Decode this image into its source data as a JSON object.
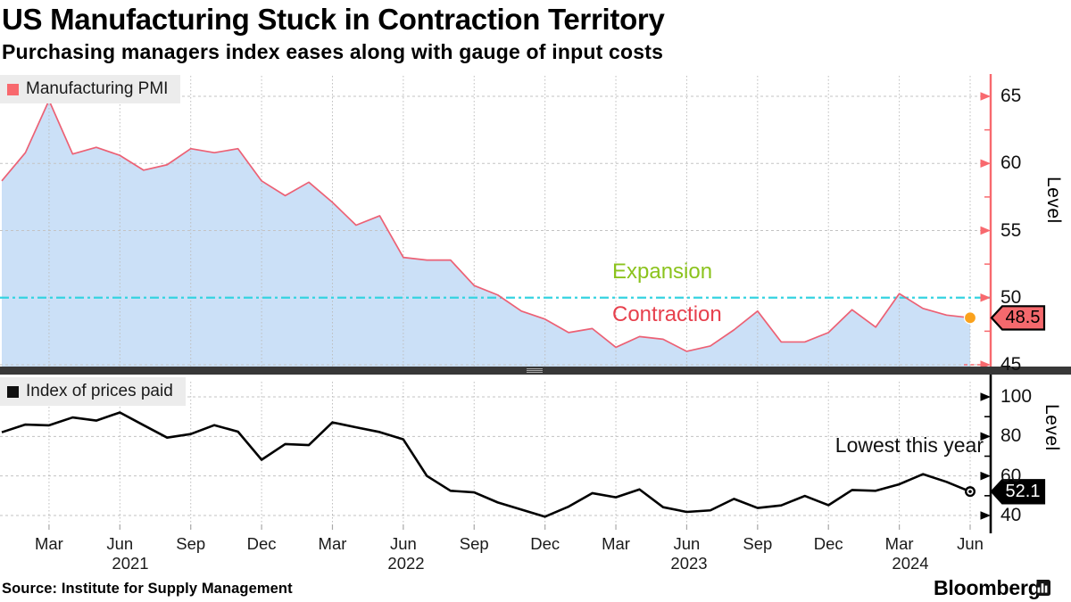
{
  "header": {
    "title": "US Manufacturing Stuck in Contraction Territory",
    "subtitle": "Purchasing managers index eases along with gauge of input costs"
  },
  "footer": {
    "source": "Source: Institute for Supply Management",
    "brand": "Bloomberg"
  },
  "panels": {
    "pmi": {
      "legend": "Manufacturing PMI",
      "axis_label": "Level",
      "last_value": "48.5",
      "expansion_label": "Expansion",
      "contraction_label": "Contraction"
    },
    "prices": {
      "legend": "Index of prices paid",
      "axis_label": "Level",
      "last_value": "52.1",
      "annotation": "Lowest this year"
    }
  },
  "x_axis": {
    "month_labels": [
      "Mar",
      "Jun",
      "Sep",
      "Dec",
      "Mar",
      "Jun",
      "Sep",
      "Dec",
      "Mar",
      "Jun",
      "Sep",
      "Dec",
      "Mar",
      "Jun"
    ],
    "year_labels": [
      "2021",
      "2022",
      "2023",
      "2024"
    ]
  },
  "colors": {
    "pmi_line": "#ec6175",
    "pmi_fill": "#cbe0f7",
    "pmi_axis": "#f8696e",
    "reference_cyan": "#35d3e1",
    "expansion_green": "#8bc31d",
    "contraction_red": "#e7404d",
    "last_dot_orange": "#faa21d",
    "prices_line": "#000000",
    "grid": "#c3c3c3",
    "tag_pmi_bg": "#f5696d",
    "tag_prices_bg": "#000000"
  },
  "chart_data": [
    {
      "type": "area",
      "title": "Manufacturing PMI",
      "frequency": "monthly",
      "x_start": "2021-01",
      "x_end": "2024-06",
      "x_tick_labels": [
        "Mar 2021",
        "Jun 2021",
        "Sep 2021",
        "Dec 2021",
        "Mar 2022",
        "Jun 2022",
        "Sep 2022",
        "Dec 2022",
        "Mar 2023",
        "Jun 2023",
        "Sep 2023",
        "Dec 2023",
        "Mar 2024",
        "Jun 2024"
      ],
      "ylabel": "Level",
      "ylim": [
        44.2,
        66.5
      ],
      "y_ticks": [
        45,
        50,
        55,
        60,
        65
      ],
      "y_minor_ticks": [
        47.5,
        52.5,
        57.5,
        62.5
      ],
      "grid": true,
      "legend_position": "top-left",
      "reference_line": {
        "value": 50,
        "style": "dash-dot",
        "label_above": "Expansion",
        "label_below": "Contraction"
      },
      "values": [
        58.7,
        60.8,
        64.7,
        60.7,
        61.2,
        60.6,
        59.5,
        59.9,
        61.1,
        60.8,
        61.1,
        58.7,
        57.6,
        58.6,
        57.1,
        55.4,
        56.1,
        53.0,
        52.8,
        52.8,
        50.9,
        50.2,
        49.0,
        48.4,
        47.4,
        47.7,
        46.3,
        47.1,
        46.9,
        46.0,
        46.4,
        47.6,
        49.0,
        46.7,
        46.7,
        47.4,
        49.1,
        47.8,
        50.3,
        49.2,
        48.7,
        48.5
      ],
      "last_value": 48.5
    },
    {
      "type": "line",
      "title": "Index of prices paid",
      "frequency": "monthly",
      "x_start": "2021-01",
      "x_end": "2024-06",
      "ylabel": "Level",
      "ylim": [
        33.7,
        107.6
      ],
      "y_ticks": [
        40,
        60,
        80,
        100
      ],
      "y_minor_ticks": [
        50,
        70,
        90
      ],
      "grid": true,
      "legend_position": "top-left",
      "annotation": {
        "text": "Lowest this year",
        "x": "2024-06",
        "y": 52.1
      },
      "values": [
        82.1,
        86.0,
        85.6,
        89.6,
        88.0,
        92.1,
        85.7,
        79.4,
        81.2,
        85.7,
        82.4,
        68.2,
        76.1,
        75.6,
        87.1,
        84.6,
        82.2,
        78.5,
        60.0,
        52.5,
        51.7,
        46.6,
        43.0,
        39.4,
        44.5,
        51.3,
        49.2,
        53.2,
        44.2,
        41.8,
        42.6,
        48.4,
        43.8,
        45.1,
        49.9,
        45.2,
        52.9,
        52.5,
        55.8,
        60.9,
        57.0,
        52.1
      ],
      "last_value": 52.1
    }
  ]
}
